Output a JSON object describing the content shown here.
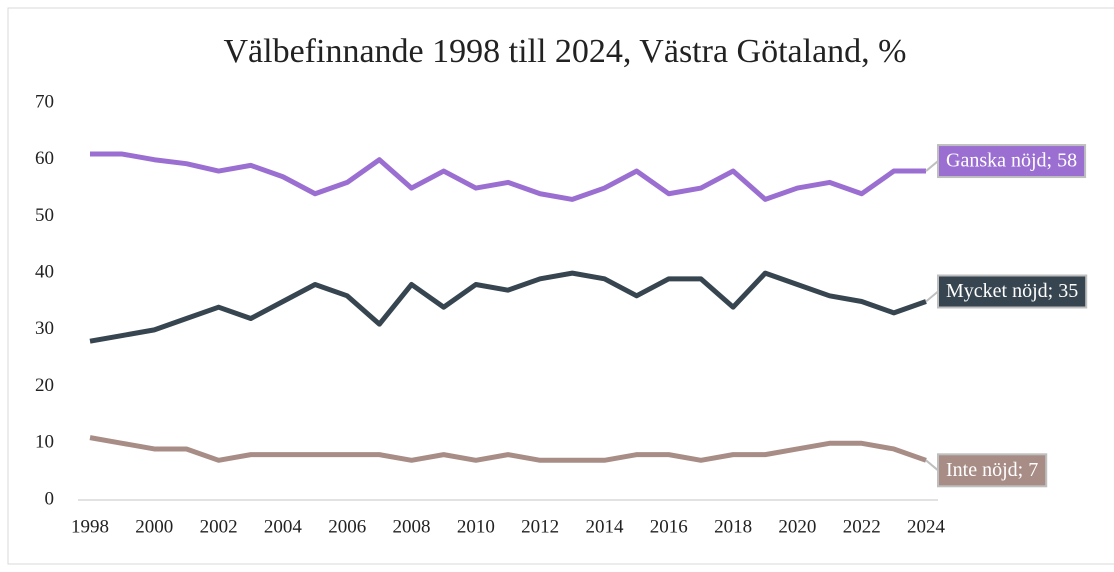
{
  "chart_data": {
    "type": "line",
    "title": "Välbefinnande 1998 till 2024, Västra Götaland, %",
    "x": [
      1998,
      1999,
      2000,
      2001,
      2002,
      2003,
      2004,
      2005,
      2006,
      2007,
      2008,
      2009,
      2010,
      2011,
      2012,
      2013,
      2014,
      2015,
      2016,
      2017,
      2018,
      2019,
      2020,
      2021,
      2022,
      2023,
      2024
    ],
    "xlim": [
      1998,
      2024
    ],
    "xticks": [
      1998,
      2000,
      2002,
      2004,
      2006,
      2008,
      2010,
      2012,
      2014,
      2016,
      2018,
      2020,
      2022,
      2024
    ],
    "ylim": [
      0,
      70
    ],
    "yticks": [
      0,
      10,
      20,
      30,
      40,
      50,
      60,
      70
    ],
    "grid": false,
    "series": [
      {
        "name": "Ganska nöjd",
        "color": "#9b6fd1",
        "values": [
          61,
          61,
          60,
          59.3,
          58,
          59,
          57,
          54,
          56,
          60,
          55,
          58,
          55,
          56,
          54,
          53,
          55,
          58,
          54,
          55,
          58,
          53,
          55,
          56,
          54,
          58,
          58
        ],
        "value_labels": [
          null,
          null,
          null,
          null,
          null,
          null,
          null,
          null,
          null,
          null,
          null,
          null,
          null,
          null,
          null,
          null,
          null,
          null,
          null,
          null,
          null,
          null,
          null,
          null,
          null,
          null,
          "Ganska nöjd; 58"
        ]
      },
      {
        "name": "Mycket nöjd",
        "color": "#36454f",
        "values": [
          28,
          29,
          30,
          32,
          34,
          32,
          35,
          38,
          36,
          31,
          38,
          34,
          38,
          37,
          39,
          40,
          39,
          36,
          39,
          39,
          34,
          40,
          38,
          36,
          35,
          33,
          35
        ],
        "value_labels": [
          null,
          null,
          null,
          null,
          null,
          null,
          null,
          null,
          null,
          null,
          null,
          null,
          null,
          null,
          null,
          null,
          null,
          null,
          null,
          null,
          null,
          null,
          null,
          null,
          null,
          null,
          "Mycket nöjd; 35"
        ]
      },
      {
        "name": "Inte nöjd",
        "color": "#a88d86",
        "values": [
          11,
          10,
          9,
          9,
          7,
          8,
          8,
          8,
          8,
          8,
          7,
          8,
          7,
          8,
          7,
          7,
          7,
          8,
          8,
          7,
          8,
          8,
          9,
          10,
          10,
          9,
          7
        ],
        "value_labels": [
          null,
          null,
          null,
          null,
          null,
          null,
          null,
          null,
          null,
          null,
          null,
          null,
          null,
          null,
          null,
          null,
          null,
          null,
          null,
          null,
          null,
          null,
          null,
          null,
          null,
          null,
          "Inte nöjd; 7"
        ]
      }
    ]
  }
}
